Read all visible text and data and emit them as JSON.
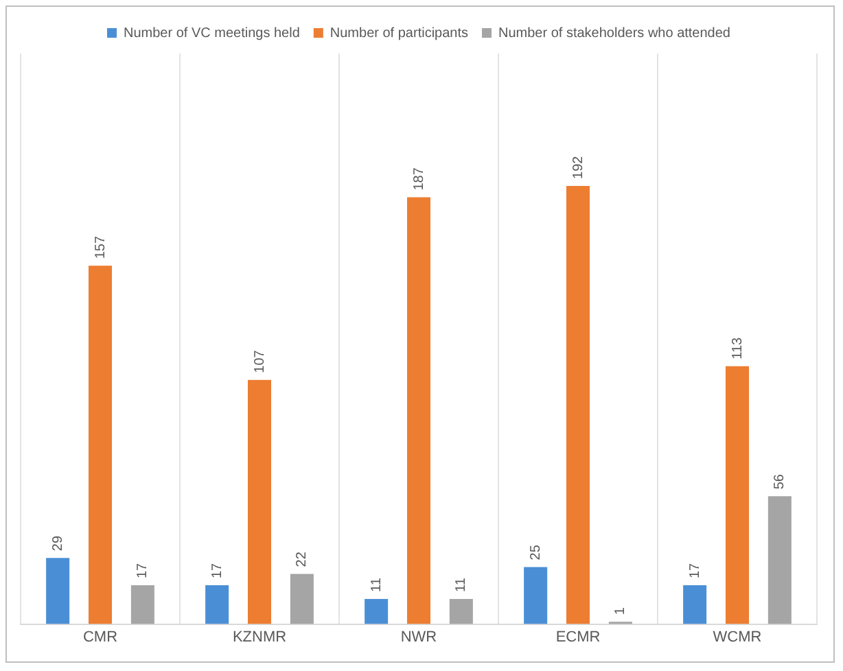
{
  "chart_data": {
    "type": "bar",
    "categories": [
      "CMR",
      "KZNMR",
      "NWR",
      "ECMR",
      "WCMR"
    ],
    "series": [
      {
        "name": "Number of VC meetings held",
        "color": "#4a8fd6",
        "values": [
          29,
          17,
          11,
          25,
          17
        ]
      },
      {
        "name": "Number of participants",
        "color": "#ed7d31",
        "values": [
          157,
          107,
          187,
          192,
          113
        ]
      },
      {
        "name": "Number of stakeholders who attended",
        "color": "#a5a5a5",
        "values": [
          17,
          22,
          11,
          1,
          56
        ]
      }
    ],
    "data_labels": true,
    "legend": "top",
    "grid": "x",
    "tick_labels": "x"
  }
}
